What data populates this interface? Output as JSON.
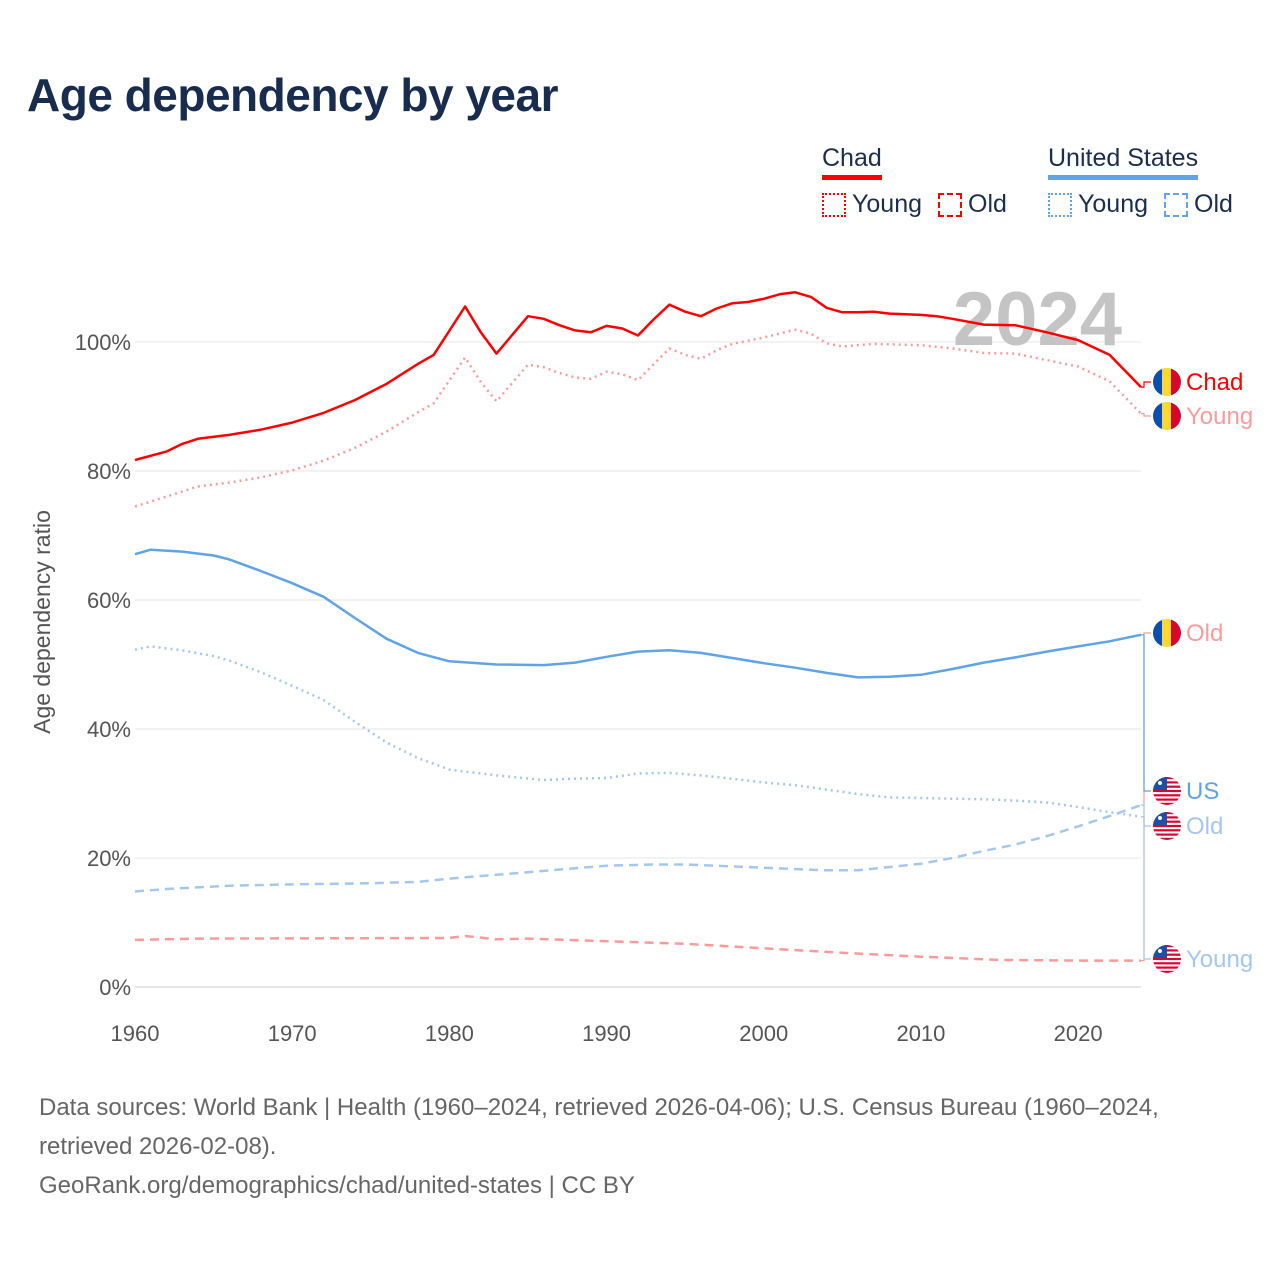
{
  "title": "Age dependency by year",
  "legend": {
    "groups": [
      {
        "name": "Chad",
        "color": "#ff0000",
        "items": [
          {
            "label": "Young",
            "style": "dotted"
          },
          {
            "label": "Old",
            "style": "dashed"
          }
        ]
      },
      {
        "name": "United States",
        "color": "#5fa3e8",
        "items": [
          {
            "label": "Young",
            "style": "dotted"
          },
          {
            "label": "Old",
            "style": "dashed"
          }
        ]
      }
    ]
  },
  "year_watermark": "2024",
  "footer": {
    "sources": "Data sources: World Bank | Health (1960–2024, retrieved 2026-04-06); U.S. Census Bureau (1960–2024, retrieved 2026-02-08).",
    "link": "GeoRank.org/demographics/chad/united-states | CC BY"
  },
  "chart_data": {
    "type": "line",
    "title": "Age dependency by year",
    "xlabel": "",
    "ylabel": "Age dependency ratio",
    "xlim": [
      1960,
      2024
    ],
    "ylim": [
      0,
      110
    ],
    "x_ticks": [
      "1960",
      "1970",
      "1980",
      "1990",
      "2000",
      "2010",
      "2020"
    ],
    "y_ticks": [
      "0%",
      "20%",
      "40%",
      "60%",
      "80%",
      "100%"
    ],
    "grid": true,
    "series": [
      {
        "name": "Chad",
        "end_label": "Chad",
        "color": "#ff0000",
        "dash": "solid",
        "flag": "chad",
        "x": [
          1960,
          1962,
          1963,
          1964,
          1966,
          1968,
          1970,
          1972,
          1974,
          1976,
          1978,
          1979,
          1981,
          1982,
          1983,
          1985,
          1986,
          1987,
          1988,
          1989,
          1990,
          1991,
          1992,
          1993,
          1994,
          1995,
          1996,
          1997,
          1998,
          1999,
          2000,
          2001,
          2002,
          2003,
          2004,
          2005,
          2006,
          2007,
          2008,
          2010,
          2011,
          2012,
          2014,
          2016,
          2018,
          2020,
          2022,
          2024
        ],
        "y": [
          81.7,
          83.0,
          84.2,
          85.0,
          85.6,
          86.4,
          87.5,
          89.0,
          91.0,
          93.5,
          96.6,
          98.0,
          105.5,
          101.5,
          98.2,
          104.0,
          103.6,
          102.6,
          101.8,
          101.5,
          102.5,
          102.1,
          101.0,
          103.5,
          105.8,
          104.7,
          104.0,
          105.2,
          106.0,
          106.2,
          106.7,
          107.4,
          107.7,
          107.0,
          105.3,
          104.6,
          104.6,
          104.7,
          104.4,
          104.2,
          104.0,
          103.6,
          102.7,
          102.6,
          101.5,
          100.3,
          98.0,
          93.0
        ]
      },
      {
        "name": "Chad Young",
        "end_label": "Young",
        "color": "#ff9a9a",
        "dash": "dotted",
        "flag": "chad",
        "x": [
          1960,
          1963,
          1964,
          1966,
          1968,
          1970,
          1972,
          1974,
          1976,
          1978,
          1979,
          1981,
          1982,
          1983,
          1985,
          1986,
          1987,
          1988,
          1989,
          1990,
          1991,
          1992,
          1994,
          1995,
          1996,
          1997,
          1998,
          2000,
          2002,
          2003,
          2004,
          2005,
          2007,
          2010,
          2012,
          2014,
          2016,
          2018,
          2020,
          2022,
          2024
        ],
        "y": [
          74.5,
          76.8,
          77.6,
          78.2,
          79.0,
          80.1,
          81.6,
          83.6,
          86.1,
          89.1,
          90.5,
          97.6,
          93.8,
          90.8,
          96.5,
          96.1,
          95.2,
          94.5,
          94.3,
          95.4,
          95.0,
          94.1,
          99.0,
          98.0,
          97.4,
          98.7,
          99.7,
          100.7,
          101.9,
          101.3,
          99.8,
          99.3,
          99.7,
          99.5,
          99.0,
          98.3,
          98.2,
          97.2,
          96.2,
          93.9,
          88.9
        ]
      },
      {
        "name": "Chad Old",
        "end_label": "Old",
        "color": "#ff9a9a",
        "dash": "dashed",
        "flag": "chad",
        "x": [
          1960,
          1964,
          1980,
          1981,
          1983,
          1985,
          1990,
          1995,
          2000,
          2005,
          2010,
          2015,
          2020,
          2024
        ],
        "y": [
          7.3,
          7.5,
          7.6,
          7.9,
          7.4,
          7.5,
          7.1,
          6.7,
          6.0,
          5.3,
          4.7,
          4.2,
          4.1,
          4.1
        ]
      },
      {
        "name": "United States",
        "end_label": "US",
        "color": "#5fa3e8",
        "dash": "solid",
        "flag": "us",
        "x": [
          1960,
          1961,
          1963,
          1965,
          1966,
          1968,
          1970,
          1972,
          1974,
          1976,
          1978,
          1980,
          1983,
          1986,
          1988,
          1990,
          1992,
          1994,
          1996,
          1998,
          2000,
          2002,
          2004,
          2006,
          2008,
          2010,
          2012,
          2014,
          2016,
          2018,
          2020,
          2022,
          2024
        ],
        "y": [
          67.1,
          67.8,
          67.5,
          66.9,
          66.3,
          64.5,
          62.6,
          60.5,
          57.2,
          54.0,
          51.8,
          50.5,
          50.0,
          49.9,
          50.3,
          51.2,
          52.0,
          52.2,
          51.8,
          51.0,
          50.2,
          49.5,
          48.7,
          48.0,
          48.1,
          48.4,
          49.3,
          50.3,
          51.1,
          52.0,
          52.8,
          53.6,
          54.6
        ]
      },
      {
        "name": "United States Old",
        "end_label": "Old",
        "color": "#a3c8f0",
        "dash": "dashed",
        "flag": "us",
        "x": [
          1960,
          1962,
          1966,
          1970,
          1975,
          1978,
          1980,
          1985,
          1990,
          1993,
          1995,
          2000,
          2004,
          2006,
          2010,
          2012,
          2014,
          2016,
          2018,
          2020,
          2022,
          2024
        ],
        "y": [
          14.8,
          15.2,
          15.7,
          15.9,
          16.1,
          16.3,
          16.8,
          17.8,
          18.8,
          19.0,
          19.0,
          18.5,
          18.1,
          18.1,
          19.1,
          20.0,
          21.1,
          22.1,
          23.4,
          24.9,
          26.5,
          28.2
        ]
      },
      {
        "name": "United States Young",
        "end_label": "Young",
        "color": "#a3c8f0",
        "dash": "dotted",
        "flag": "us",
        "x": [
          1960,
          1961,
          1963,
          1965,
          1966,
          1968,
          1970,
          1972,
          1974,
          1976,
          1978,
          1980,
          1983,
          1986,
          1988,
          1990,
          1992,
          1994,
          1996,
          1998,
          2000,
          2002,
          2004,
          2006,
          2008,
          2010,
          2012,
          2014,
          2016,
          2018,
          2020,
          2022,
          2024
        ],
        "y": [
          52.3,
          52.8,
          52.2,
          51.3,
          50.6,
          48.8,
          46.7,
          44.5,
          41.1,
          37.9,
          35.5,
          33.7,
          32.8,
          32.1,
          32.3,
          32.4,
          33.1,
          33.2,
          32.8,
          32.3,
          31.7,
          31.3,
          30.6,
          29.9,
          29.4,
          29.3,
          29.2,
          29.1,
          28.9,
          28.6,
          27.9,
          27.1,
          26.4
        ]
      }
    ]
  }
}
